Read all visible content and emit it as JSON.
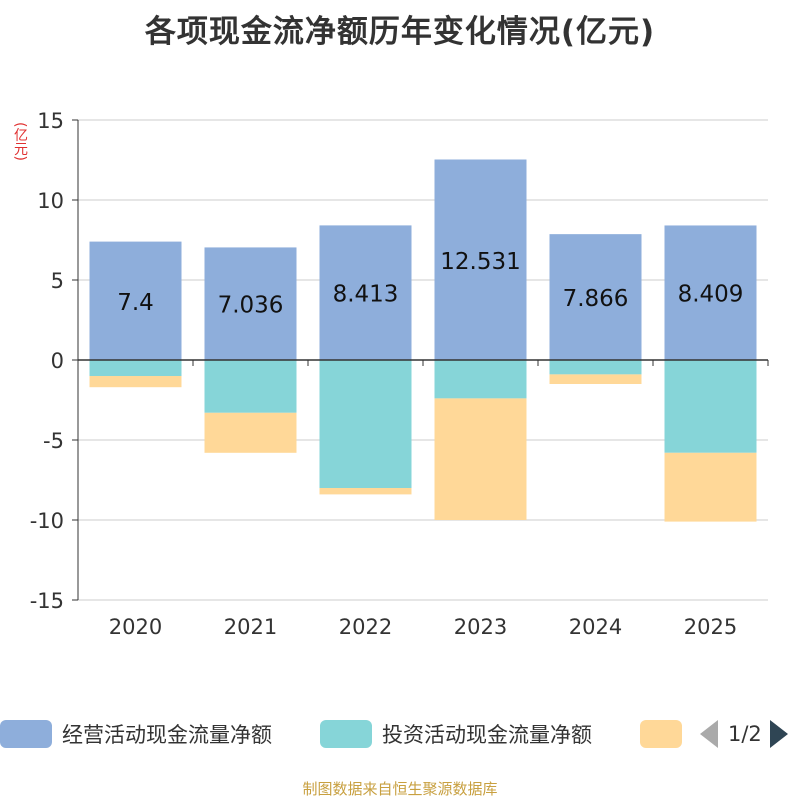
{
  "chart_data": {
    "type": "bar",
    "stacked": true,
    "title": "各项现金流净额历年变化情况(亿元)",
    "ylabel": "(亿元)",
    "categories": [
      "2020",
      "2021",
      "2022",
      "2023",
      "2024",
      "2025"
    ],
    "ylim": [
      -15,
      15
    ],
    "yticks": [
      15,
      10,
      5,
      0,
      -5,
      -10,
      -15
    ],
    "series": [
      {
        "name": "经营活动现金流量净额",
        "color": "#8eaedb",
        "values": [
          7.4,
          7.036,
          8.413,
          12.531,
          7.866,
          8.409
        ],
        "show_labels": true
      },
      {
        "name": "投资活动现金流量净额",
        "color": "#86d5d8",
        "values": [
          -1.0,
          -3.3,
          -8.0,
          -2.4,
          -0.9,
          -5.8
        ],
        "show_labels": false
      },
      {
        "name": "",
        "color": "#ffd898",
        "values": [
          -0.7,
          -2.5,
          -0.4,
          -7.6,
          -0.6,
          -4.3
        ],
        "show_labels": false
      }
    ]
  },
  "legend": {
    "page": "1/2"
  },
  "source": "制图数据来自恒生聚源数据库"
}
